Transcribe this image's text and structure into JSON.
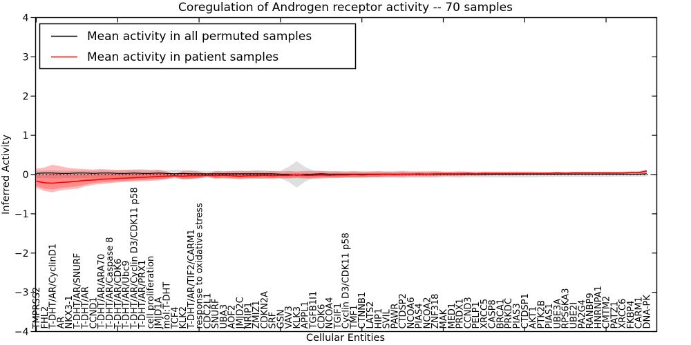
{
  "chart_data": {
    "type": "line",
    "title": "Coregulation of Androgen receptor activity -- 70 samples",
    "xlabel": "Cellular Entities",
    "ylabel": "Inferred Activity",
    "ylim": [
      -4,
      4
    ],
    "yticks": [
      4,
      3,
      2,
      1,
      0,
      -1,
      -2,
      -3,
      -4
    ],
    "ytick_labels": [
      "4",
      "3",
      "2",
      "1",
      "0",
      "−1",
      "−2",
      "−3",
      "−4"
    ],
    "xtick_every": 10,
    "grid": false,
    "legend_position": "upper-left",
    "zero_line": {
      "value": 0,
      "style": "dotted",
      "color": "#000000"
    },
    "categories": [
      "TMPRSS2",
      "FHL2",
      "T-DHT/AR/CyclinD1",
      "AR",
      "NKX3-1",
      "T-DHT/AR/SNURF",
      "T-DHT/AR",
      "CCND1",
      "T-DHT/AR/ARA70",
      "T-DHT/AR/Caspase 8",
      "T-DHT/AR/CDK6",
      "T-DHT/AR/Ubc9",
      "T-DHT/AR/Cyclin D3/CDK11 p58",
      "T-DHT/AR/PRX1",
      "cell proliferation",
      "JMJD1A",
      "mol:T-DHT",
      "TCF4",
      "KLK2",
      "T-DHT/AR/TIF2/CARM1",
      "response to oxidative stress",
      "CDC2L1",
      "SNURF",
      "UBA3",
      "AOF2",
      "JMJD2C",
      "NRIP1",
      "ZMIZ1",
      "CDKN2A",
      "SRF",
      "GSN",
      "VAV3",
      "KLK3",
      "APPL1",
      "TGFB1I1",
      "CDK6",
      "NCOA4",
      "TGIF1",
      "Cyclin D3/CDK11 p58",
      "TMF1",
      "CTNNB1",
      "LATS2",
      "HIP1",
      "SVIL",
      "PAWR",
      "CTDSP2",
      "NCOA6",
      "PIAS4",
      "NCOA2",
      "ZNF318",
      "MAK",
      "MED1",
      "PRDX1",
      "CCND3",
      "PELP1",
      "XRCC5",
      "CASP8",
      "BRCA1",
      "PRKDC",
      "PIAS3",
      "CTDSP1",
      "AKT1",
      "PTK2B",
      "PIAS1",
      "UBE3A",
      "RPS6KA3",
      "UBE2I",
      "PA2G4",
      "RANBP9",
      "HNRNPA1",
      "CMTM2",
      "PATZ1",
      "XRCC6",
      "FKBP4",
      "CARM1",
      "DNA-PK"
    ],
    "series": [
      {
        "id": "permuted-mean-line",
        "name": "Mean activity in all permuted samples",
        "color": "#000000",
        "width": 1.2,
        "values": [
          0.03,
          0.04,
          0.04,
          0.03,
          0.03,
          0.04,
          0.04,
          0.03,
          0.04,
          0.04,
          0.03,
          0.03,
          0.04,
          0.03,
          0.03,
          0.04,
          0.03,
          0.02,
          0.03,
          0.02,
          0.02,
          0.02,
          0.02,
          0.02,
          0.02,
          0.02,
          0.02,
          0.02,
          0.02,
          0.02,
          0.01,
          0.0,
          -0.02,
          0.0,
          0.01,
          0.02,
          0.01,
          0.01,
          0.01,
          0.01,
          0.01,
          0.01,
          0.01,
          0.01,
          0.01,
          0.01,
          0.01,
          0.01,
          0.01,
          0.01,
          0.01,
          0.01,
          0.01,
          0.01,
          0.01,
          0.01,
          0.01,
          0.01,
          0.01,
          0.01,
          0.01,
          0.01,
          0.01,
          0.01,
          0.01,
          0.01,
          0.01,
          0.01,
          0.01,
          0.01,
          0.01,
          0.01,
          0.01,
          0.01,
          0.01,
          0.02
        ]
      },
      {
        "id": "patient-mean-line",
        "name": "Mean activity in patient samples",
        "color": "#ff0000",
        "width": 1.6,
        "values": [
          -0.17,
          -0.21,
          -0.22,
          -0.2,
          -0.19,
          -0.17,
          -0.15,
          -0.14,
          -0.12,
          -0.11,
          -0.1,
          -0.09,
          -0.08,
          -0.07,
          -0.06,
          -0.05,
          -0.04,
          -0.03,
          -0.04,
          -0.03,
          -0.03,
          -0.02,
          -0.03,
          -0.02,
          -0.03,
          -0.04,
          -0.03,
          -0.03,
          -0.02,
          -0.03,
          -0.02,
          -0.02,
          -0.01,
          -0.02,
          -0.02,
          -0.01,
          -0.02,
          -0.01,
          -0.01,
          0.0,
          -0.01,
          0.0,
          0.0,
          0.01,
          0.0,
          0.01,
          0.01,
          0.02,
          0.01,
          0.02,
          0.02,
          0.02,
          0.02,
          0.03,
          0.02,
          0.03,
          0.03,
          0.03,
          0.03,
          0.03,
          0.03,
          0.03,
          0.03,
          0.03,
          0.04,
          0.03,
          0.04,
          0.04,
          0.04,
          0.04,
          0.04,
          0.04,
          0.04,
          0.05,
          0.05,
          0.09
        ]
      }
    ],
    "bands": [
      {
        "id": "permuted-std-band",
        "color": "#808080",
        "opacity": 0.25,
        "upper": [
          0.1,
          0.1,
          0.11,
          0.1,
          0.1,
          0.1,
          0.1,
          0.1,
          0.11,
          0.1,
          0.1,
          0.12,
          0.13,
          0.14,
          0.12,
          0.12,
          0.11,
          0.12,
          0.12,
          0.11,
          0.1,
          0.09,
          0.09,
          0.09,
          0.09,
          0.09,
          0.09,
          0.12,
          0.11,
          0.09,
          0.1,
          0.2,
          0.34,
          0.2,
          0.1,
          0.09,
          0.09,
          0.09,
          0.09,
          0.09,
          0.09,
          0.09,
          0.09,
          0.09,
          0.09,
          0.1,
          0.09,
          0.09,
          0.09,
          0.09,
          0.08,
          0.08,
          0.09,
          0.08,
          0.08,
          0.08,
          0.08,
          0.08,
          0.08,
          0.08,
          0.08,
          0.08,
          0.07,
          0.07,
          0.07,
          0.07,
          0.07,
          0.07,
          0.07,
          0.07,
          0.07,
          0.06,
          0.06,
          0.06,
          0.06,
          0.06
        ],
        "lower": [
          -0.09,
          -0.09,
          -0.1,
          -0.09,
          -0.09,
          -0.09,
          -0.09,
          -0.09,
          -0.1,
          -0.09,
          -0.09,
          -0.11,
          -0.12,
          -0.13,
          -0.11,
          -0.11,
          -0.1,
          -0.11,
          -0.11,
          -0.1,
          -0.09,
          -0.08,
          -0.08,
          -0.08,
          -0.08,
          -0.08,
          -0.08,
          -0.11,
          -0.1,
          -0.08,
          -0.09,
          -0.19,
          -0.33,
          -0.19,
          -0.09,
          -0.08,
          -0.08,
          -0.08,
          -0.08,
          -0.08,
          -0.08,
          -0.08,
          -0.08,
          -0.08,
          -0.08,
          -0.09,
          -0.08,
          -0.08,
          -0.08,
          -0.08,
          -0.07,
          -0.07,
          -0.08,
          -0.07,
          -0.07,
          -0.07,
          -0.07,
          -0.07,
          -0.07,
          -0.07,
          -0.07,
          -0.07,
          -0.06,
          -0.06,
          -0.06,
          -0.06,
          -0.06,
          -0.06,
          -0.06,
          -0.06,
          -0.06,
          -0.05,
          -0.05,
          -0.05,
          -0.05,
          -0.05
        ]
      },
      {
        "id": "patient-std-outer-band",
        "color": "#ff0000",
        "opacity": 0.27,
        "upper": [
          0.15,
          0.18,
          0.25,
          0.21,
          0.17,
          0.15,
          0.14,
          0.13,
          0.14,
          0.13,
          0.12,
          0.12,
          0.12,
          0.11,
          0.11,
          0.12,
          0.08,
          0.01,
          0.09,
          0.1,
          0.08,
          0.02,
          0.09,
          0.08,
          0.09,
          0.1,
          0.09,
          0.09,
          0.08,
          0.09,
          0.08,
          0.09,
          0.08,
          0.09,
          0.1,
          0.09,
          0.08,
          0.08,
          0.07,
          0.08,
          0.07,
          0.07,
          0.08,
          0.07,
          0.07,
          0.08,
          0.07,
          0.07,
          0.07,
          0.08,
          0.07,
          0.07,
          0.07,
          0.07,
          0.06,
          0.07,
          0.06,
          0.06,
          0.06,
          0.06,
          0.06,
          0.06,
          0.06,
          0.06,
          0.07,
          0.06,
          0.07,
          0.07,
          0.07,
          0.07,
          0.07,
          0.07,
          0.07,
          0.08,
          0.08,
          0.13
        ],
        "lower": [
          -0.34,
          -0.42,
          -0.45,
          -0.4,
          -0.38,
          -0.36,
          -0.3,
          -0.26,
          -0.24,
          -0.22,
          -0.2,
          -0.19,
          -0.18,
          -0.17,
          -0.16,
          -0.15,
          -0.12,
          -0.07,
          -0.13,
          -0.12,
          -0.1,
          -0.06,
          -0.11,
          -0.1,
          -0.11,
          -0.12,
          -0.11,
          -0.1,
          -0.1,
          -0.11,
          -0.1,
          -0.1,
          -0.09,
          -0.1,
          -0.11,
          -0.1,
          -0.09,
          -0.09,
          -0.08,
          -0.08,
          -0.08,
          -0.07,
          -0.07,
          -0.06,
          -0.06,
          -0.06,
          -0.05,
          -0.05,
          -0.05,
          -0.05,
          -0.04,
          -0.04,
          -0.04,
          -0.03,
          -0.03,
          -0.03,
          -0.02,
          -0.02,
          -0.02,
          -0.02,
          -0.01,
          -0.01,
          -0.01,
          -0.01,
          -0.01,
          0.0,
          0.0,
          0.0,
          0.01,
          0.01,
          0.01,
          0.01,
          0.01,
          0.02,
          0.02,
          0.04
        ]
      },
      {
        "id": "patient-std-inner-band",
        "color": "#ff0000",
        "opacity": 0.25,
        "upper": [
          -0.01,
          -0.02,
          0.02,
          0.01,
          -0.01,
          -0.01,
          0.0,
          0.0,
          0.01,
          0.01,
          0.01,
          0.02,
          0.02,
          0.02,
          0.03,
          0.04,
          0.02,
          -0.01,
          0.03,
          0.03,
          0.02,
          0.0,
          0.03,
          0.03,
          0.03,
          0.03,
          0.03,
          0.03,
          0.03,
          0.03,
          0.03,
          0.04,
          0.04,
          0.04,
          0.04,
          0.04,
          0.03,
          0.04,
          0.03,
          0.04,
          0.03,
          0.04,
          0.04,
          0.04,
          0.04,
          0.05,
          0.04,
          0.05,
          0.04,
          0.05,
          0.05,
          0.05,
          0.05,
          0.05,
          0.04,
          0.05,
          0.05,
          0.05,
          0.05,
          0.05,
          0.05,
          0.05,
          0.05,
          0.05,
          0.06,
          0.05,
          0.06,
          0.06,
          0.06,
          0.06,
          0.06,
          0.06,
          0.06,
          0.07,
          0.07,
          0.11
        ],
        "lower": [
          -0.29,
          -0.36,
          -0.38,
          -0.34,
          -0.32,
          -0.3,
          -0.26,
          -0.22,
          -0.2,
          -0.19,
          -0.17,
          -0.16,
          -0.15,
          -0.14,
          -0.13,
          -0.12,
          -0.1,
          -0.06,
          -0.1,
          -0.1,
          -0.08,
          -0.05,
          -0.09,
          -0.08,
          -0.09,
          -0.1,
          -0.09,
          -0.08,
          -0.08,
          -0.09,
          -0.08,
          -0.08,
          -0.07,
          -0.08,
          -0.08,
          -0.07,
          -0.07,
          -0.07,
          -0.06,
          -0.06,
          -0.06,
          -0.05,
          -0.05,
          -0.04,
          -0.04,
          -0.04,
          -0.03,
          -0.03,
          -0.03,
          -0.03,
          -0.02,
          -0.02,
          -0.02,
          -0.01,
          -0.02,
          -0.01,
          -0.01,
          -0.01,
          -0.01,
          -0.01,
          0.0,
          0.0,
          0.0,
          0.0,
          0.01,
          0.01,
          0.01,
          0.01,
          0.02,
          0.02,
          0.02,
          0.02,
          0.02,
          0.03,
          0.03,
          0.06
        ]
      }
    ]
  },
  "legend": {
    "entries": [
      {
        "label": "Mean activity in all permuted samples",
        "color": "#000000"
      },
      {
        "label": "Mean activity in patient samples",
        "color": "#ff0000"
      }
    ]
  }
}
